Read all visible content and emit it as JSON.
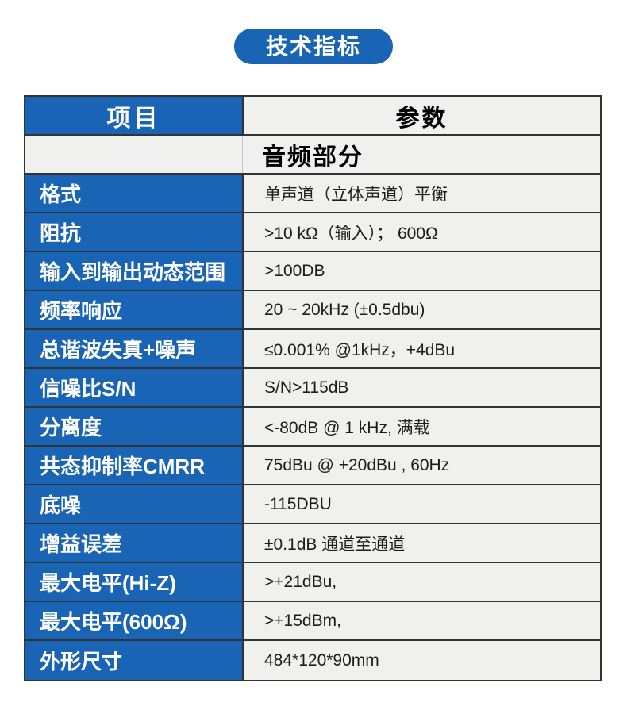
{
  "badge": {
    "label": "技术指标"
  },
  "colors": {
    "blue": "#1a64b5",
    "cell_bg": "#f0f0ee",
    "border": "#333333"
  },
  "table": {
    "header": {
      "item": "项目",
      "params": "参数"
    },
    "section": "音频部分",
    "rows": [
      {
        "label": "格式",
        "value": "单声道（立体声道）平衡"
      },
      {
        "label": "阻抗",
        "value": ">10 kΩ（输入）； 600Ω"
      },
      {
        "label": "输入到输出动态范围",
        "value": ">100DB"
      },
      {
        "label": "频率响应",
        "value": "20 ~ 20kHz (±0.5dbu)"
      },
      {
        "label": "总谐波失真+噪声",
        "value": "≤0.001% @1kHz，+4dBu"
      },
      {
        "label": "信噪比S/N",
        "value": "S/N>115dB"
      },
      {
        "label": "分离度",
        "value": "<-80dB @ 1 kHz, 满载"
      },
      {
        "label": "共态抑制率CMRR",
        "value": "75dBu @ +20dBu , 60Hz"
      },
      {
        "label": "底噪",
        "value": "-115DBU"
      },
      {
        "label": "增益误差",
        "value": "±0.1dB 通道至通道"
      },
      {
        "label": "最大电平(Hi-Z)",
        "value": ">+21dBu,"
      },
      {
        "label": "最大电平(600Ω)",
        "value": ">+15dBm,"
      },
      {
        "label": "外形尺寸",
        "value": "484*120*90mm"
      }
    ]
  }
}
